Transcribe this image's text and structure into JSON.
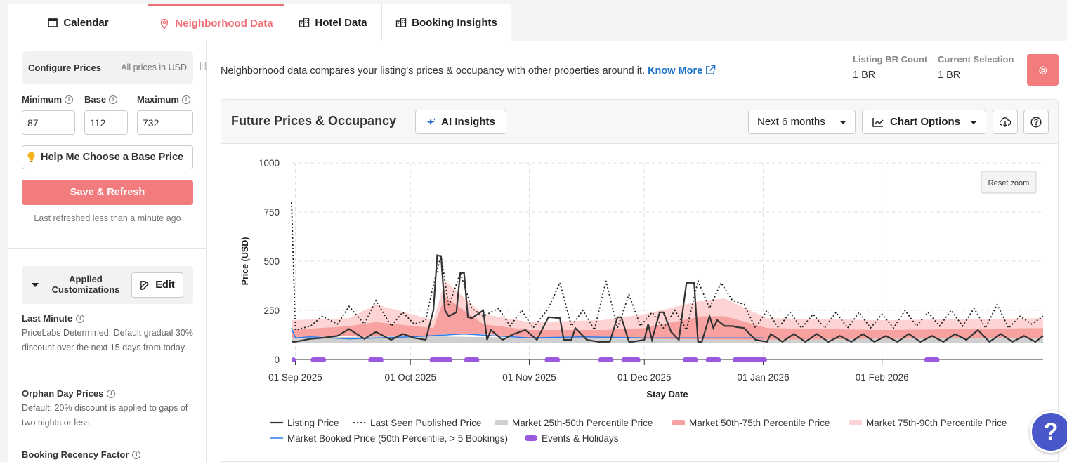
{
  "tabs": [
    {
      "label": "Calendar",
      "icon": "calendar-icon"
    },
    {
      "label": "Neighborhood Data",
      "icon": "map-pin-icon",
      "active": true
    },
    {
      "label": "Hotel Data",
      "icon": "building-icon"
    },
    {
      "label": "Booking Insights",
      "icon": "building-icon"
    }
  ],
  "sidebar": {
    "configure_title": "Configure Prices",
    "configure_sub": "All prices in USD",
    "min_label": "Minimum",
    "base_label": "Base",
    "max_label": "Maximum",
    "min_value": "87",
    "base_value": "112",
    "max_value": "732",
    "help_button": "Help Me Choose a Base Price",
    "save_button": "Save & Refresh",
    "last_refreshed": "Last refreshed less than a minute ago",
    "applied_title": "Applied Customizations",
    "edit_button": "Edit",
    "sections": [
      {
        "title": "Last Minute",
        "desc": "PriceLabs Determined: Default gradual 30% discount over the next 15 days from today."
      },
      {
        "title": "Orphan Day Prices",
        "desc": "Default: 20% discount is applied to gaps of two nights or less."
      },
      {
        "title": "Booking Recency Factor",
        "desc": ""
      }
    ]
  },
  "header": {
    "description": "Neighborhood data compares your listing's prices & occupancy with other properties around it.",
    "know_more": "Know More",
    "listing_br_label": "Listing BR Count",
    "listing_br_value": "1 BR",
    "current_sel_label": "Current Selection",
    "current_sel_value": "1 BR"
  },
  "card": {
    "title": "Future Prices & Occupancy",
    "ai_button": "AI Insights",
    "range_select": "Next 6 months",
    "chart_options": "Chart Options",
    "reset_zoom": "Reset zoom"
  },
  "colors": {
    "accent": "#f27b7e",
    "link": "#1a73c8",
    "listing": "#333333",
    "p25_50": "#cfcfcf",
    "p50_75": "#f8a1a1",
    "p75_90": "#fdd3d3",
    "booked": "#2b7de9",
    "events": "#9b59e0"
  },
  "chart_data": {
    "type": "line",
    "xlabel": "Stay Date",
    "ylabel": "Price (USD)",
    "ylim": [
      0,
      1000
    ],
    "y_ticks": [
      "0",
      "250",
      "500",
      "750",
      "1000"
    ],
    "x_ticks": [
      "01 Sep 2025",
      "01 Oct 2025",
      "01 Nov 2025",
      "01 Dec 2025",
      "01 Jan 2026",
      "01 Feb 2026"
    ],
    "x_start": "2025-08-31",
    "x_end": "2026-03-15",
    "grid": true,
    "legend": [
      {
        "name": "Listing Price",
        "style": "line"
      },
      {
        "name": "Last Seen Published Price",
        "style": "dotted"
      },
      {
        "name": "Market 25th-50th Percentile Price",
        "style": "band-gray"
      },
      {
        "name": "Market 50th-75th Percentile Price",
        "style": "band-red"
      },
      {
        "name": "Market 75th-90th Percentile Price",
        "style": "band-pink"
      },
      {
        "name": "Market Booked Price (50th Percentile, > 5 Bookings)",
        "style": "line-blue"
      },
      {
        "name": "Events & Holidays",
        "style": "bar-purple"
      }
    ],
    "series": [
      {
        "name": "Listing Price",
        "x": [
          "2025-08-31",
          "2025-09-01",
          "2025-09-05",
          "2025-09-08",
          "2025-09-12",
          "2025-09-15",
          "2025-09-19",
          "2025-09-22",
          "2025-09-26",
          "2025-09-29",
          "2025-10-02",
          "2025-10-05",
          "2025-10-07",
          "2025-10-08",
          "2025-10-09",
          "2025-10-10",
          "2025-10-11",
          "2025-10-13",
          "2025-10-14",
          "2025-10-15",
          "2025-10-16",
          "2025-10-17",
          "2025-10-20",
          "2025-10-21",
          "2025-10-22",
          "2025-10-25",
          "2025-10-28",
          "2025-10-31",
          "2025-11-03",
          "2025-11-06",
          "2025-11-09",
          "2025-11-10",
          "2025-11-12",
          "2025-11-13",
          "2025-11-16",
          "2025-11-19",
          "2025-11-22",
          "2025-11-24",
          "2025-11-25",
          "2025-11-27",
          "2025-11-28",
          "2025-12-01",
          "2025-12-02",
          "2025-12-03",
          "2025-12-05",
          "2025-12-06",
          "2025-12-08",
          "2025-12-10",
          "2025-12-12",
          "2025-12-14",
          "2025-12-15",
          "2025-12-16",
          "2025-12-18",
          "2025-12-19",
          "2025-12-20",
          "2025-12-22",
          "2025-12-24",
          "2025-12-25",
          "2025-12-27",
          "2025-12-30",
          "2026-01-02",
          "2026-01-03",
          "2026-01-06",
          "2026-01-09",
          "2026-01-12",
          "2026-01-15",
          "2026-01-18",
          "2026-01-21",
          "2026-01-24",
          "2026-01-27",
          "2026-01-30",
          "2026-02-02",
          "2026-02-05",
          "2026-02-08",
          "2026-02-11",
          "2026-02-14",
          "2026-02-17",
          "2026-02-20",
          "2026-02-23",
          "2026-02-26",
          "2026-03-01",
          "2026-03-04",
          "2026-03-07",
          "2026-03-10",
          "2026-03-13",
          "2026-03-15"
        ],
        "y": [
          90,
          90,
          105,
          110,
          120,
          155,
          105,
          140,
          100,
          130,
          110,
          100,
          250,
          530,
          525,
          250,
          220,
          240,
          440,
          440,
          215,
          210,
          250,
          100,
          150,
          100,
          130,
          150,
          100,
          215,
          210,
          100,
          100,
          160,
          100,
          90,
          90,
          215,
          215,
          90,
          90,
          100,
          180,
          100,
          240,
          240,
          140,
          100,
          390,
          390,
          90,
          90,
          220,
          160,
          200,
          170,
          170,
          165,
          160,
          100,
          90,
          130,
          90,
          130,
          90,
          130,
          90,
          120,
          90,
          130,
          90,
          120,
          90,
          130,
          90,
          120,
          90,
          130,
          100,
          150,
          90,
          130,
          90,
          120,
          90,
          120
        ]
      },
      {
        "name": "Last Seen Published Price",
        "x": [
          "2025-08-31",
          "2025-09-01",
          "2025-09-05",
          "2025-09-08",
          "2025-09-12",
          "2025-09-15",
          "2025-09-19",
          "2025-09-22",
          "2025-09-26",
          "2025-09-29",
          "2025-10-02",
          "2025-10-05",
          "2025-10-07",
          "2025-10-09",
          "2025-10-11",
          "2025-10-14",
          "2025-10-17",
          "2025-10-20",
          "2025-10-24",
          "2025-10-27",
          "2025-10-30",
          "2025-11-02",
          "2025-11-06",
          "2025-11-09",
          "2025-11-12",
          "2025-11-15",
          "2025-11-18",
          "2025-11-21",
          "2025-11-24",
          "2025-11-27",
          "2025-11-30",
          "2025-12-03",
          "2025-12-06",
          "2025-12-09",
          "2025-12-12",
          "2025-12-15",
          "2025-12-18",
          "2025-12-21",
          "2025-12-24",
          "2025-12-27",
          "2025-12-30",
          "2026-01-02",
          "2026-01-05",
          "2026-01-08",
          "2026-01-11",
          "2026-01-14",
          "2026-01-17",
          "2026-01-20",
          "2026-01-23",
          "2026-01-26",
          "2026-01-29",
          "2026-02-01",
          "2026-02-04",
          "2026-02-07",
          "2026-02-10",
          "2026-02-13",
          "2026-02-16",
          "2026-02-19",
          "2026-02-22",
          "2026-02-25",
          "2026-02-28",
          "2026-03-03",
          "2026-03-06",
          "2026-03-09",
          "2026-03-12",
          "2026-03-15"
        ],
        "y": [
          800,
          150,
          170,
          220,
          180,
          270,
          180,
          300,
          170,
          240,
          180,
          200,
          380,
          530,
          270,
          440,
          260,
          220,
          260,
          170,
          250,
          160,
          260,
          390,
          170,
          250,
          150,
          400,
          160,
          330,
          170,
          240,
          160,
          250,
          150,
          400,
          260,
          390,
          300,
          280,
          160,
          250,
          160,
          240,
          160,
          230,
          160,
          240,
          160,
          240,
          160,
          230,
          160,
          250,
          170,
          240,
          170,
          250,
          170,
          260,
          160,
          280,
          160,
          220,
          180,
          220
        ]
      },
      {
        "name": "Market 25th-50th Percentile Price",
        "x": [
          "2025-08-31",
          "2025-10-01",
          "2025-11-01",
          "2025-12-01",
          "2026-01-01",
          "2026-02-01",
          "2026-03-15"
        ],
        "y_low": [
          85,
          85,
          85,
          85,
          85,
          85,
          85
        ],
        "y_high": [
          110,
          120,
          110,
          105,
          100,
          105,
          110
        ]
      },
      {
        "name": "Market 50th-75th Percentile Price",
        "x": [
          "2025-08-31",
          "2025-09-15",
          "2025-09-22",
          "2025-10-07",
          "2025-10-10",
          "2025-10-20",
          "2025-11-01",
          "2025-11-20",
          "2025-12-01",
          "2025-12-16",
          "2025-12-22",
          "2026-01-02",
          "2026-02-01",
          "2026-03-15"
        ],
        "y_low": [
          110,
          120,
          110,
          120,
          130,
          130,
          110,
          110,
          105,
          100,
          100,
          100,
          105,
          110
        ],
        "y_high": [
          150,
          170,
          190,
          160,
          320,
          180,
          150,
          150,
          160,
          220,
          220,
          160,
          150,
          160
        ]
      },
      {
        "name": "Market 75th-90th Percentile Price",
        "x": [
          "2025-08-31",
          "2025-09-15",
          "2025-09-22",
          "2025-10-07",
          "2025-10-10",
          "2025-10-20",
          "2025-11-01",
          "2025-11-20",
          "2025-12-01",
          "2025-12-16",
          "2025-12-22",
          "2026-01-02",
          "2026-02-01",
          "2026-03-15"
        ],
        "y_low": [
          150,
          170,
          190,
          160,
          320,
          180,
          150,
          150,
          160,
          220,
          220,
          160,
          150,
          160
        ],
        "y_high": [
          200,
          210,
          280,
          200,
          400,
          230,
          190,
          200,
          230,
          300,
          310,
          210,
          200,
          210
        ]
      },
      {
        "name": "Market Booked Price (50th Percentile, > 5 Bookings)",
        "x": [
          "2025-08-31",
          "2025-09-01",
          "2025-09-05",
          "2025-09-15",
          "2025-10-01",
          "2025-10-15",
          "2025-11-01",
          "2025-11-15",
          "2025-12-01",
          "2025-12-20",
          "2026-01-01"
        ],
        "y": [
          160,
          110,
          115,
          105,
          115,
          130,
          110,
          115,
          110,
          110,
          110
        ]
      }
    ],
    "events": [
      {
        "start": "2025-08-31",
        "end": "2025-09-01"
      },
      {
        "start": "2025-09-05",
        "end": "2025-09-09"
      },
      {
        "start": "2025-09-20",
        "end": "2025-09-24"
      },
      {
        "start": "2025-10-06",
        "end": "2025-10-12"
      },
      {
        "start": "2025-10-15",
        "end": "2025-10-19"
      },
      {
        "start": "2025-11-05",
        "end": "2025-11-09"
      },
      {
        "start": "2025-11-19",
        "end": "2025-11-23"
      },
      {
        "start": "2025-11-25",
        "end": "2025-11-30"
      },
      {
        "start": "2025-12-11",
        "end": "2025-12-15"
      },
      {
        "start": "2025-12-17",
        "end": "2025-12-21"
      },
      {
        "start": "2025-12-24",
        "end": "2026-01-02"
      },
      {
        "start": "2026-02-12",
        "end": "2026-02-16"
      }
    ]
  }
}
